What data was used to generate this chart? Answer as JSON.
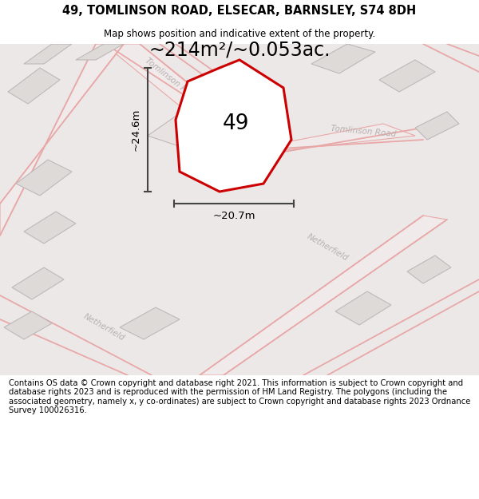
{
  "title": "49, TOMLINSON ROAD, ELSECAR, BARNSLEY, S74 8DH",
  "subtitle": "Map shows position and indicative extent of the property.",
  "footer": "Contains OS data © Crown copyright and database right 2021. This information is subject to Crown copyright and database rights 2023 and is reproduced with the permission of HM Land Registry. The polygons (including the associated geometry, namely x, y co-ordinates) are subject to Crown copyright and database rights 2023 Ordnance Survey 100026316.",
  "area_label": "~214m²/~0.053ac.",
  "width_label": "~20.7m",
  "height_label": "~24.6m",
  "property_number": "49",
  "map_bg": "#ede8e8",
  "plot_outline_color": "#cc0000",
  "road_color": "#e8a8a8",
  "building_fill": "#dedad8",
  "road_label_color": "#b8b0b0",
  "dim_line_color": "#444444",
  "title_fontsize": 10.5,
  "subtitle_fontsize": 8.5,
  "footer_fontsize": 7.2,
  "area_label_fontsize": 17,
  "dim_label_fontsize": 9.5
}
